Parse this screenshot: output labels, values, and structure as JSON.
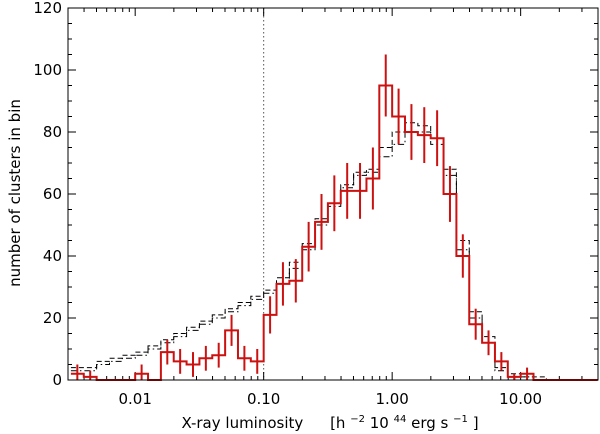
{
  "chart_data": {
    "type": "histogram",
    "xscale": "log",
    "xlim": [
      0.003,
      40
    ],
    "ylim": [
      0,
      120
    ],
    "xlabel_main": "X-ray luminosity",
    "xlabel_unit_parts": [
      "[h",
      "−2",
      " 10",
      "44",
      " erg s",
      "−1",
      " ]"
    ],
    "ylabel": "number of clusters in bin",
    "xticks": [
      0.01,
      0.1,
      1,
      10
    ],
    "xtick_labels": [
      "0.01",
      "0.10",
      "1.00",
      "10.00"
    ],
    "yticks": [
      0,
      20,
      40,
      60,
      80,
      100,
      120
    ],
    "ytick_labels": [
      "0",
      "20",
      "40",
      "60",
      "80",
      "100",
      "120"
    ],
    "vline_x": 0.1,
    "bin_edges": [
      0.00316,
      0.00398,
      0.00501,
      0.00631,
      0.00794,
      0.01,
      0.01259,
      0.01585,
      0.01995,
      0.02512,
      0.03162,
      0.03981,
      0.05012,
      0.0631,
      0.07943,
      0.1,
      0.12589,
      0.15849,
      0.19953,
      0.25119,
      0.31623,
      0.39811,
      0.50119,
      0.63096,
      0.79433,
      1.0,
      1.25893,
      1.58489,
      1.99526,
      2.51189,
      3.16228,
      3.98107,
      5.01187,
      6.30957,
      7.94328,
      10.0,
      12.5893,
      15.8489,
      19.9526,
      25.1189,
      31.6228,
      39.8107
    ],
    "series": [
      {
        "style": "solid",
        "color": "#cc1111",
        "values": [
          2,
          1,
          0,
          0,
          0,
          2,
          0,
          9,
          6,
          5,
          7,
          8,
          16,
          7,
          6,
          21,
          31,
          32,
          43,
          51,
          57,
          61,
          61,
          65,
          95,
          85,
          80,
          79,
          78,
          60,
          40,
          18,
          12,
          6,
          1,
          2,
          0,
          0,
          0,
          0,
          0
        ],
        "errors": [
          3,
          2,
          0,
          0,
          0,
          3,
          0,
          4,
          4,
          4,
          4,
          4,
          5,
          4,
          4,
          6,
          7,
          7,
          8,
          9,
          9,
          9,
          9,
          10,
          10,
          9,
          9,
          9,
          9,
          9,
          7,
          5,
          4,
          3,
          1,
          2,
          0,
          0,
          0,
          0,
          0
        ]
      },
      {
        "style": "dashed",
        "color": "#000000",
        "values": [
          4,
          4,
          6,
          7,
          8,
          9,
          11,
          13,
          15,
          17,
          19,
          21,
          23,
          25,
          27,
          29,
          33,
          38,
          44,
          52,
          57,
          63,
          67,
          68,
          75,
          80,
          83,
          82,
          78,
          68,
          45,
          22,
          14,
          4,
          2,
          1,
          1,
          0,
          0,
          0,
          0
        ]
      },
      {
        "style": "dashdot",
        "color": "#000000",
        "values": [
          3,
          3,
          5,
          6,
          7,
          8,
          10,
          12,
          14,
          16,
          18,
          20,
          22,
          24,
          26,
          28,
          31,
          36,
          42,
          50,
          56,
          62,
          66,
          67,
          72,
          76,
          80,
          80,
          76,
          66,
          42,
          20,
          12,
          3,
          1,
          1,
          0,
          0,
          0,
          0,
          0
        ]
      }
    ]
  }
}
